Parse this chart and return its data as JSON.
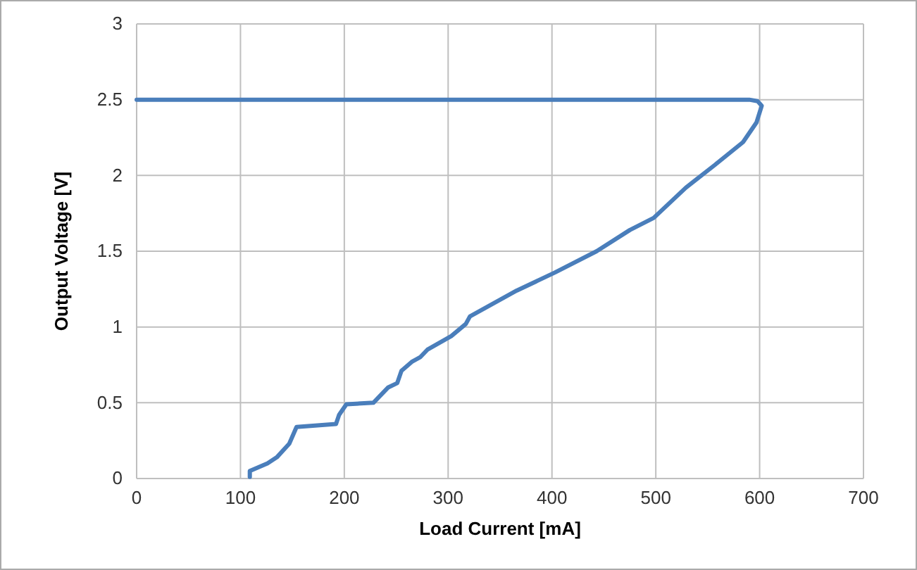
{
  "chart_data": {
    "type": "line",
    "xlabel": "Load Current [mA]",
    "ylabel": "Output Voltage [V]",
    "xlim": [
      0,
      700
    ],
    "xticks": [
      0,
      100,
      200,
      300,
      400,
      500,
      600,
      700
    ],
    "ylim": [
      0,
      3
    ],
    "yticks": [
      0,
      0.5,
      1,
      1.5,
      2,
      2.5,
      3
    ],
    "grid": true,
    "series": [
      {
        "color": "#4a7ebb",
        "x": [
          109,
          109,
          126,
          135,
          147,
          154,
          192,
          195,
          202,
          228,
          242,
          251,
          255,
          265,
          273,
          280,
          303,
          317,
          321,
          366,
          403,
          443,
          475,
          498,
          529,
          557,
          584,
          597,
          602,
          598,
          590,
          560,
          0
        ],
        "values": [
          0.01,
          0.05,
          0.1,
          0.14,
          0.23,
          0.34,
          0.36,
          0.42,
          0.49,
          0.5,
          0.6,
          0.63,
          0.71,
          0.77,
          0.8,
          0.85,
          0.94,
          1.02,
          1.07,
          1.24,
          1.36,
          1.5,
          1.64,
          1.72,
          1.92,
          2.07,
          2.22,
          2.35,
          2.46,
          2.49,
          2.5,
          2.5,
          2.5
        ]
      }
    ]
  }
}
